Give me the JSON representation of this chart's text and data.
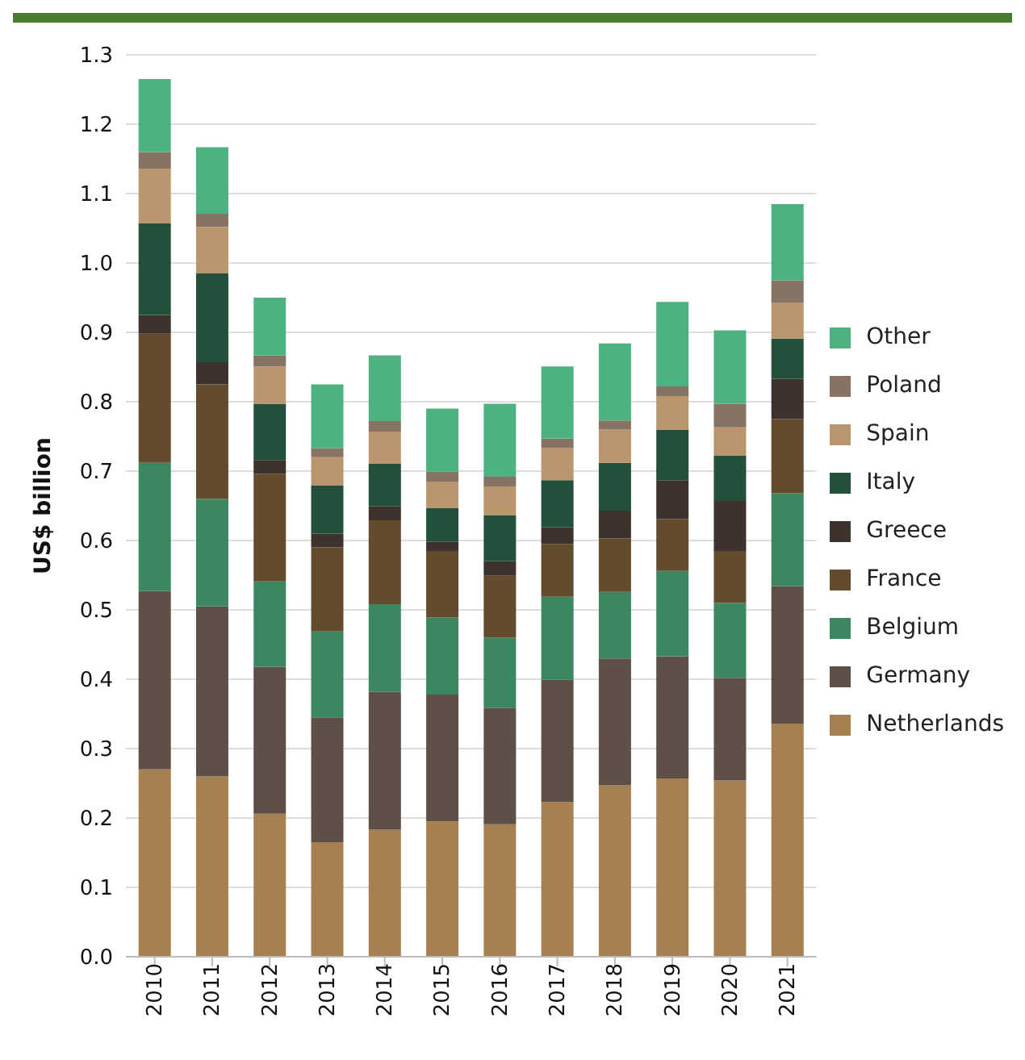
{
  "chart_data": {
    "type": "bar",
    "stacked": true,
    "ylabel": "US$ billion",
    "categories": [
      "2010",
      "2011",
      "2012",
      "2013",
      "2014",
      "2015",
      "2016",
      "2017",
      "2018",
      "2019",
      "2020",
      "2021"
    ],
    "ylim": [
      0,
      1.3
    ],
    "yticks": [
      {
        "value": 0,
        "label": "0.0"
      },
      0.1,
      0.2,
      0.3,
      0.4,
      0.5,
      0.6,
      0.7,
      0.8,
      0.9,
      {
        "value": 1,
        "label": "1.0"
      },
      1.1,
      1.2,
      1.3
    ],
    "grid": "y",
    "legend": "right",
    "series": [
      {
        "name": "Netherlands",
        "color": "#a68050",
        "values": [
          0.27,
          0.26,
          0.206,
          0.165,
          0.183,
          0.195,
          0.191,
          0.223,
          0.247,
          0.257,
          0.254,
          0.336
        ]
      },
      {
        "name": "Germany",
        "color": "#5e5047",
        "values": [
          0.257,
          0.245,
          0.212,
          0.18,
          0.199,
          0.183,
          0.168,
          0.176,
          0.183,
          0.176,
          0.148,
          0.198
        ]
      },
      {
        "name": "Belgium",
        "color": "#3a8760",
        "values": [
          0.185,
          0.155,
          0.123,
          0.124,
          0.126,
          0.111,
          0.101,
          0.12,
          0.096,
          0.123,
          0.108,
          0.134
        ]
      },
      {
        "name": "France",
        "color": "#634b2e",
        "values": [
          0.186,
          0.165,
          0.155,
          0.121,
          0.121,
          0.096,
          0.089,
          0.076,
          0.077,
          0.075,
          0.075,
          0.107
        ]
      },
      {
        "name": "Greece",
        "color": "#3d322c",
        "values": [
          0.027,
          0.032,
          0.02,
          0.02,
          0.02,
          0.013,
          0.021,
          0.024,
          0.04,
          0.056,
          0.072,
          0.058
        ]
      },
      {
        "name": "Italy",
        "color": "#22503b",
        "values": [
          0.132,
          0.128,
          0.081,
          0.069,
          0.062,
          0.049,
          0.066,
          0.068,
          0.069,
          0.073,
          0.065,
          0.058
        ]
      },
      {
        "name": "Spain",
        "color": "#b9966d",
        "values": [
          0.079,
          0.067,
          0.054,
          0.041,
          0.046,
          0.038,
          0.042,
          0.046,
          0.048,
          0.048,
          0.041,
          0.052
        ]
      },
      {
        "name": "Poland",
        "color": "#867363",
        "values": [
          0.024,
          0.019,
          0.016,
          0.013,
          0.015,
          0.014,
          0.014,
          0.014,
          0.013,
          0.014,
          0.034,
          0.032
        ]
      },
      {
        "name": "Other",
        "color": "#4db27f",
        "values": [
          0.105,
          0.096,
          0.083,
          0.092,
          0.095,
          0.091,
          0.105,
          0.104,
          0.111,
          0.122,
          0.106,
          0.11
        ]
      }
    ]
  }
}
